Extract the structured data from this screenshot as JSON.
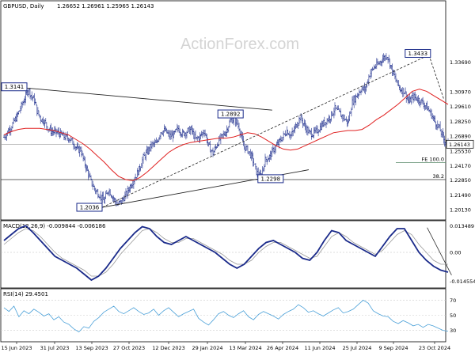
{
  "chart_data": {
    "type": "ohlc",
    "title": "GBPUSD, Daily",
    "ohlc_readout": "1.26652 1.26961 1.25965 1.26143",
    "watermark": "ActionForex.com",
    "last_price_label": "1.26143",
    "x_tick_labels": [
      "15 Jun 2023",
      "31 Jul 2023",
      "13 Sep 2023",
      "27 Oct 2023",
      "12 Dec 2023",
      "29 Jan 2024",
      "13 Mar 2024",
      "26 Apr 2024",
      "11 Jun 2024",
      "25 Jul 2024",
      "9 Sep 2024",
      "23 Oct 2024"
    ],
    "price_ylim": [
      1.192,
      1.393
    ],
    "price_ticks": [
      "1.33690",
      "1.30970",
      "1.29610",
      "1.28250",
      "1.26890",
      "1.25530",
      "1.24170",
      "1.22850",
      "1.21490",
      "1.20130"
    ],
    "price_path_date_index": [
      0,
      8,
      15,
      22,
      28,
      32,
      35,
      38,
      42,
      46,
      50,
      55,
      62,
      70,
      75,
      80,
      85,
      88,
      92,
      95,
      100,
      105,
      110,
      115,
      120,
      125,
      130,
      135,
      140,
      145,
      150,
      155,
      160,
      165,
      170,
      175,
      180,
      185,
      190,
      195,
      200,
      205,
      210,
      215,
      220,
      225,
      230,
      235,
      240,
      245,
      250,
      255,
      260,
      265,
      270,
      275,
      280,
      285,
      290,
      295,
      300,
      305,
      310,
      315,
      320,
      325,
      330,
      335,
      340,
      345,
      350,
      355,
      360,
      365,
      370,
      375,
      380,
      385,
      390,
      395,
      400,
      405,
      410,
      415,
      420,
      425,
      430,
      435,
      440,
      445,
      450,
      455,
      460,
      465,
      470,
      475,
      480,
      485,
      490,
      495,
      500,
      505,
      510
    ],
    "price_path": [
      1.268,
      1.277,
      1.287,
      1.3,
      1.312,
      1.305,
      1.302,
      1.292,
      1.285,
      1.283,
      1.277,
      1.273,
      1.272,
      1.268,
      1.267,
      1.262,
      1.256,
      1.257,
      1.245,
      1.239,
      1.227,
      1.219,
      1.215,
      1.209,
      1.22,
      1.213,
      1.206,
      1.209,
      1.215,
      1.223,
      1.23,
      1.238,
      1.249,
      1.255,
      1.261,
      1.262,
      1.273,
      1.274,
      1.269,
      1.27,
      1.276,
      1.271,
      1.273,
      1.275,
      1.266,
      1.268,
      1.274,
      1.26,
      1.253,
      1.262,
      1.268,
      1.273,
      1.283,
      1.285,
      1.277,
      1.26,
      1.256,
      1.249,
      1.236,
      1.231,
      1.247,
      1.25,
      1.257,
      1.262,
      1.268,
      1.274,
      1.269,
      1.278,
      1.286,
      1.279,
      1.272,
      1.271,
      1.274,
      1.279,
      1.283,
      1.287,
      1.294,
      1.29,
      1.286,
      1.281,
      1.3,
      1.306,
      1.312,
      1.312,
      1.326,
      1.332,
      1.335,
      1.34,
      1.343,
      1.331,
      1.32,
      1.312,
      1.31,
      1.3,
      1.305,
      1.303,
      1.3,
      1.296,
      1.29,
      1.282,
      1.276,
      1.266,
      1.261
    ],
    "sma_path": [
      1.27,
      1.273,
      1.275,
      1.276,
      1.276,
      1.276,
      1.275,
      1.274,
      1.272,
      1.27,
      1.266,
      1.262,
      1.257,
      1.251,
      1.245,
      1.238,
      1.232,
      1.229,
      1.228,
      1.231,
      1.236,
      1.242,
      1.248,
      1.254,
      1.258,
      1.261,
      1.263,
      1.264,
      1.265,
      1.266,
      1.267,
      1.267,
      1.268,
      1.27,
      1.272,
      1.271,
      1.268,
      1.264,
      1.26,
      1.257,
      1.256,
      1.257,
      1.26,
      1.263,
      1.266,
      1.269,
      1.272,
      1.273,
      1.274,
      1.274,
      1.275,
      1.279,
      1.284,
      1.288,
      1.293,
      1.298,
      1.304,
      1.31,
      1.312,
      1.31,
      1.306,
      1.302,
      1.298
    ],
    "trendlines": [
      {
        "from": [
          10,
          1.3141
        ],
        "to": [
          308,
          1.2927
        ]
      },
      {
        "from": [
          113,
          1.2036
        ],
        "to": [
          350,
          1.238
        ]
      }
    ],
    "dashed_lines": [
      {
        "from": [
          113,
          1.2036
        ],
        "to": [
          488,
          1.3433
        ]
      },
      {
        "from": [
          488,
          1.3433
        ],
        "to": [
          505,
          1.303
        ]
      }
    ],
    "levels": [
      {
        "label": "FE 100.0",
        "value": 1.2445
      },
      {
        "label": "38.2",
        "value": 1.229
      }
    ],
    "annotations": [
      {
        "label": "1.3433",
        "x": 488,
        "y": 1.3433
      },
      {
        "label": "1.3141",
        "x": 8,
        "y": 1.3141
      },
      {
        "label": "1.2892",
        "x": 262,
        "y": 1.2892
      },
      {
        "label": "1.2298",
        "x": 308,
        "y": 1.2298
      },
      {
        "label": "1.2036",
        "x": 100,
        "y": 1.2036
      }
    ],
    "macd": {
      "label": "MACD(12,26,9) -0.009844 -0.006186",
      "ticks": [
        "0.013489",
        "0.00",
        "-0.014554"
      ],
      "ylim": [
        -0.018,
        0.016
      ],
      "main": [
        0.006,
        0.009,
        0.012,
        0.0135,
        0.01,
        0.006,
        0.002,
        -0.002,
        -0.004,
        -0.006,
        -0.008,
        -0.011,
        -0.014,
        -0.012,
        -0.008,
        -0.003,
        0.002,
        0.006,
        0.01,
        0.013,
        0.012,
        0.008,
        0.005,
        0.004,
        0.006,
        0.008,
        0.006,
        0.004,
        0.002,
        0.0,
        -0.003,
        -0.006,
        -0.008,
        -0.006,
        -0.002,
        0.002,
        0.005,
        0.006,
        0.004,
        0.002,
        0.0,
        -0.003,
        -0.004,
        0.0,
        0.006,
        0.011,
        0.01,
        0.006,
        0.004,
        0.002,
        0.0,
        -0.002,
        0.003,
        0.008,
        0.012,
        0.012,
        0.006,
        0.0,
        -0.004,
        -0.007,
        -0.009,
        -0.01
      ],
      "signal_line": [
        0.004,
        0.007,
        0.01,
        0.012,
        0.011,
        0.008,
        0.004,
        0.0,
        -0.003,
        -0.005,
        -0.007,
        -0.009,
        -0.012,
        -0.012,
        -0.01,
        -0.006,
        -0.001,
        0.003,
        0.007,
        0.011,
        0.012,
        0.01,
        0.007,
        0.005,
        0.005,
        0.007,
        0.007,
        0.005,
        0.003,
        0.001,
        -0.001,
        -0.004,
        -0.006,
        -0.006,
        -0.004,
        0.0,
        0.003,
        0.005,
        0.005,
        0.003,
        0.001,
        -0.001,
        -0.003,
        -0.002,
        0.003,
        0.008,
        0.01,
        0.008,
        0.005,
        0.003,
        0.001,
        -0.001,
        0.001,
        0.005,
        0.009,
        0.011,
        0.009,
        0.004,
        0.0,
        -0.004,
        -0.006,
        -0.006
      ]
    },
    "rsi": {
      "label": "RSI(14) 29.4501",
      "ticks": [
        "70",
        "50",
        "30"
      ],
      "ylim": [
        15,
        85
      ],
      "values": [
        60,
        55,
        62,
        48,
        56,
        52,
        58,
        54,
        49,
        52,
        44,
        48,
        41,
        38,
        32,
        28,
        35,
        33,
        42,
        47,
        54,
        58,
        62,
        55,
        52,
        56,
        60,
        55,
        51,
        53,
        58,
        50,
        56,
        60,
        54,
        48,
        52,
        55,
        58,
        46,
        41,
        37,
        44,
        52,
        55,
        50,
        47,
        52,
        56,
        48,
        44,
        51,
        55,
        52,
        49,
        45,
        51,
        55,
        58,
        64,
        60,
        54,
        56,
        52,
        49,
        53,
        57,
        60,
        53,
        55,
        58,
        64,
        70,
        66,
        56,
        52,
        49,
        48,
        42,
        39,
        43,
        40,
        36,
        38,
        34,
        38,
        36,
        33,
        30,
        29
      ]
    }
  }
}
